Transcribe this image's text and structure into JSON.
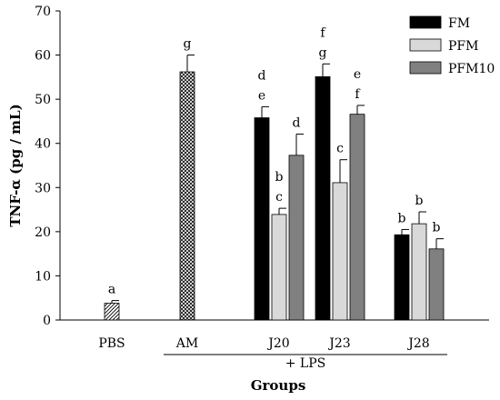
{
  "chart_data": {
    "type": "bar",
    "title": "",
    "ylabel": "TNF-α (pg / mL)",
    "xlabel": "Groups",
    "ylim": [
      0,
      70
    ],
    "yticks": [
      0,
      10,
      20,
      30,
      40,
      50,
      60,
      70
    ],
    "legend_position": "top-right",
    "series_styles": [
      {
        "name": "FM",
        "color": "#000000"
      },
      {
        "name": "PFM",
        "color": "#d9d9d9"
      },
      {
        "name": "PFM10",
        "color": "#808080"
      }
    ],
    "groups": [
      {
        "label": "PBS",
        "bars": [
          {
            "value": 3.8,
            "error": 0.6,
            "sig": [
              "a"
            ],
            "style": "hatch"
          }
        ]
      },
      {
        "label": "AM",
        "bars": [
          {
            "value": 56.2,
            "error": 3.8,
            "sig": [
              "g"
            ],
            "style": "crosshatch"
          }
        ]
      },
      {
        "label": "J20",
        "bars": [
          {
            "series": "FM",
            "value": 45.8,
            "error": 2.5,
            "sig": [
              "d",
              "e"
            ]
          },
          {
            "series": "PFM",
            "value": 23.9,
            "error": 1.4,
            "sig": [
              "b",
              "c"
            ]
          },
          {
            "series": "PFM10",
            "value": 37.3,
            "error": 4.8,
            "sig": [
              "d"
            ]
          }
        ]
      },
      {
        "label": "J23",
        "bars": [
          {
            "series": "FM",
            "value": 55.1,
            "error": 2.9,
            "sig": [
              "f",
              "g"
            ]
          },
          {
            "series": "PFM",
            "value": 31.1,
            "error": 5.2,
            "sig": [
              "c"
            ]
          },
          {
            "series": "PFM10",
            "value": 46.6,
            "error": 2.0,
            "sig": [
              "e",
              "f"
            ]
          }
        ]
      },
      {
        "label": "J28",
        "bars": [
          {
            "series": "FM",
            "value": 19.3,
            "error": 1.2,
            "sig": [
              "b"
            ]
          },
          {
            "series": "PFM",
            "value": 21.8,
            "error": 2.7,
            "sig": [
              "b"
            ]
          },
          {
            "series": "PFM10",
            "value": 16.1,
            "error": 2.3,
            "sig": [
              "b"
            ]
          }
        ]
      }
    ],
    "group_annotation": "+ LPS"
  }
}
